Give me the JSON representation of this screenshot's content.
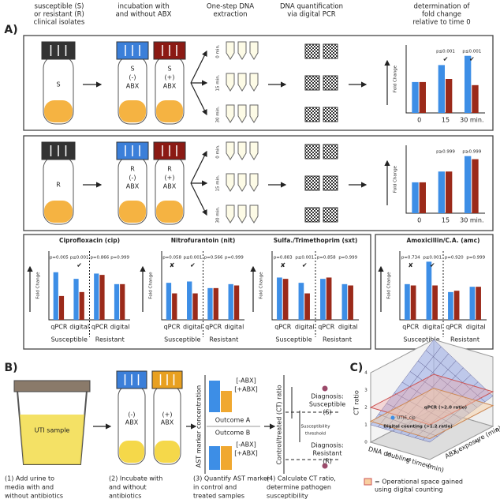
{
  "panel_a": {
    "label": "A)",
    "headers": [
      [
        "susceptible (S)",
        "or resistant (R)",
        "clinical isolates"
      ],
      [
        "incubation with",
        "and without ABX"
      ],
      [
        "One-step DNA",
        "extraction"
      ],
      [
        "DNA quantification",
        "via digital PCR"
      ],
      [
        "determination of",
        "fold change",
        "relative to time 0"
      ]
    ],
    "times": [
      "0 min.",
      "15 min.",
      "30 min."
    ],
    "rows": [
      {
        "isolate": "S",
        "untreated": [
          "S",
          "(-)",
          "ABX"
        ],
        "treated": [
          "S",
          "(+)",
          "ABX"
        ],
        "chart": {
          "type": "bar",
          "y_label": "Fold Change",
          "categories": [
            "0",
            "15",
            "30 min."
          ],
          "ylim": [
            0,
            2.2
          ],
          "series": [
            {
              "color": "#3d8ee6",
              "values": [
                1.0,
                1.55,
                1.85
              ]
            },
            {
              "color": "#9b2a1a",
              "values": [
                1.0,
                1.1,
                0.9
              ]
            }
          ],
          "p_labels": [
            null,
            "p≤0.001",
            "p≤0.001"
          ],
          "verdicts": [
            null,
            "✔",
            "✔"
          ]
        }
      },
      {
        "isolate": "R",
        "untreated": [
          "R",
          "(-)",
          "ABX"
        ],
        "treated": [
          "R",
          "(+)",
          "ABX"
        ],
        "chart": {
          "type": "bar",
          "y_label": "Fold Change",
          "categories": [
            "0",
            "15",
            "30 min."
          ],
          "ylim": [
            0,
            2.2
          ],
          "series": [
            {
              "color": "#3d8ee6",
              "values": [
                1.0,
                1.35,
                1.85
              ]
            },
            {
              "color": "#9b2a1a",
              "values": [
                1.0,
                1.35,
                1.75
              ]
            }
          ],
          "p_labels": [
            null,
            "p≥0.999",
            "p≥0.999"
          ],
          "verdicts": [
            null,
            null,
            null
          ]
        }
      }
    ],
    "antibiotic_charts": [
      {
        "type": "bar",
        "title": "Ciprofloxacin (cip)",
        "y_label": "Fold Change",
        "categories": [
          "qPCR",
          "digital",
          "qPCR",
          "digital"
        ],
        "groups": [
          "Susceptible",
          "Resistant"
        ],
        "ylim": [
          0,
          2.6
        ],
        "series": [
          {
            "color": "#3d8ee6",
            "values": [
              1.8,
              1.55,
              1.75,
              1.35
            ]
          },
          {
            "color": "#9b2a1a",
            "values": [
              0.9,
              1.05,
              1.7,
              1.35
            ]
          }
        ],
        "p_labels": [
          "p=0.005",
          "p≤0.001",
          "p=0.866",
          "p=0.999"
        ],
        "verdicts": [
          null,
          "✔",
          null,
          null
        ]
      },
      {
        "type": "bar",
        "title": "Nitrofurantoin (nit)",
        "y_label": "Fold Change",
        "categories": [
          "qPCR",
          "digital",
          "qPCR",
          "digital"
        ],
        "groups": [
          "Susceptible",
          "Resistant"
        ],
        "ylim": [
          0,
          2.6
        ],
        "series": [
          {
            "color": "#3d8ee6",
            "values": [
              1.4,
              1.45,
              1.2,
              1.35
            ]
          },
          {
            "color": "#9b2a1a",
            "values": [
              1.0,
              1.0,
              1.2,
              1.3
            ]
          }
        ],
        "p_labels": [
          "p=0.058",
          "p≤0.001",
          "p=0.566",
          "p=0.999"
        ],
        "verdicts": [
          "✘",
          "✔",
          null,
          null
        ]
      },
      {
        "type": "bar",
        "title": "Sulfa./Trimethoprim (sxt)",
        "y_label": "Fold Change",
        "categories": [
          "qPCR",
          "digital",
          "qPCR",
          "digital"
        ],
        "groups": [
          "Susceptible",
          "Resistant"
        ],
        "ylim": [
          0,
          2.6
        ],
        "series": [
          {
            "color": "#3d8ee6",
            "values": [
              1.6,
              1.4,
              1.55,
              1.35
            ]
          },
          {
            "color": "#9b2a1a",
            "values": [
              1.55,
              1.0,
              1.6,
              1.3
            ]
          }
        ],
        "p_labels": [
          "p=0.883",
          "p≤0.001",
          "p=0.858",
          "p=0.999"
        ],
        "verdicts": [
          "✘",
          "✔",
          null,
          null
        ]
      },
      {
        "type": "bar",
        "title": "Amoxicillin/C.A. (amc)",
        "y_label": "Fold Change",
        "categories": [
          "qPCR",
          "digital",
          "qPCR",
          "digital"
        ],
        "groups": [
          "Susceptible",
          "Resistant"
        ],
        "ylim": [
          0,
          2.6
        ],
        "series": [
          {
            "color": "#3d8ee6",
            "values": [
              1.35,
              2.2,
              1.05,
              1.25
            ]
          },
          {
            "color": "#9b2a1a",
            "values": [
              1.3,
              1.3,
              1.1,
              1.25
            ]
          }
        ],
        "p_labels": [
          "p=0.734",
          "p≤0.001",
          "p=0.920",
          "p=0.999"
        ],
        "verdicts": [
          "✘",
          "✔",
          null,
          null
        ]
      }
    ]
  },
  "panel_b": {
    "label": "B)",
    "sample": "UTI sample",
    "tube_neg": [
      "(-)",
      "ABX"
    ],
    "tube_pos": [
      "(+)",
      "ABX"
    ],
    "marker_axis": "AST marker concentration",
    "neg": "[-ABX]",
    "pos": "[+ABX]",
    "outcome_a": "Outcome A",
    "outcome_b": "Outcome B",
    "ct_axis": "Control/treated (CT) ratio",
    "threshold": [
      "Susceptibility",
      "threshold"
    ],
    "diag_s": [
      "Diagnosis:",
      "Susceptible",
      "(S)"
    ],
    "diag_r": [
      "Diagnosis:",
      "Resistant",
      "(R)"
    ],
    "steps": [
      [
        "(1) Add urine to",
        "media with and",
        "without antibiotics"
      ],
      [
        "(2) Incubate with",
        "and without",
        "antibiotics"
      ],
      [
        "(3) Quantify AST marker",
        "in control and",
        "treated samples"
      ],
      [
        "(4) Calculate CT ratio,",
        "determine pathogen",
        "susceptibility"
      ]
    ]
  },
  "panel_c": {
    "label": "C)",
    "z_label": "CT ratio",
    "zticks": [
      0,
      1,
      2,
      3,
      4
    ],
    "x_label": "DNA doubling time (min)",
    "xticks": [
      20,
      40,
      60
    ],
    "y_label": "ABX exposure (min)",
    "yticks": [
      20,
      40,
      60
    ],
    "qpcr": "qPCR (>2.0 ratio)",
    "digital": "Digital counting (>1.2 ratio)",
    "point": "UTI6_cip",
    "legend": [
      "= Operational space gained",
      "using digital counting"
    ]
  }
}
